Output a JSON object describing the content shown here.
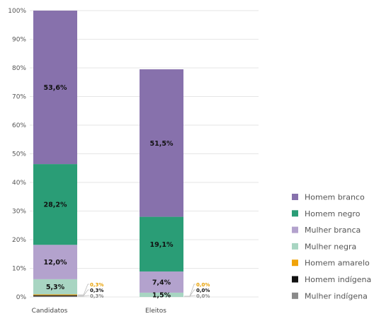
{
  "chart_data": {
    "type": "bar",
    "stacked": true,
    "categories": [
      "Candidatos",
      "Eleitos"
    ],
    "ylim": [
      0,
      100
    ],
    "yticks": [
      "0%",
      "10%",
      "20%",
      "30%",
      "40%",
      "50%",
      "60%",
      "70%",
      "80%",
      "90%",
      "100%"
    ],
    "grid": true,
    "legend_position": "right",
    "series": [
      {
        "name": "Mulher indígena",
        "color": "#8a8a8a",
        "values": [
          0.3,
          0.0
        ],
        "labels": [
          "0,3%",
          "0,0%"
        ]
      },
      {
        "name": "Homem indígena",
        "color": "#111111",
        "values": [
          0.3,
          0.0
        ],
        "labels": [
          "0,3%",
          "0,0%"
        ]
      },
      {
        "name": "Homem amarelo",
        "color": "#f0a30a",
        "values": [
          0.3,
          0.0
        ],
        "labels": [
          "0,3%",
          "0,0%"
        ]
      },
      {
        "name": "Mulher negra",
        "color": "#a8d5c2",
        "values": [
          5.3,
          1.5
        ],
        "labels": [
          "5,3%",
          "1,5%"
        ]
      },
      {
        "name": "Mulher branca",
        "color": "#b3a2cd",
        "values": [
          12.0,
          7.4
        ],
        "labels": [
          "12,0%",
          "7,4%"
        ]
      },
      {
        "name": "Homem negro",
        "color": "#2a9d76",
        "values": [
          28.2,
          19.1
        ],
        "labels": [
          "28,2%",
          "19,1%"
        ]
      },
      {
        "name": "Homem branco",
        "color": "#8771ac",
        "values": [
          53.6,
          51.5
        ],
        "labels": [
          "53,6%",
          "51,5%"
        ]
      }
    ],
    "legend_order": [
      "Homem branco",
      "Homem negro",
      "Mulher branca",
      "Mulher negra",
      "Homem amarelo",
      "Homem indígena",
      "Mulher indígena"
    ]
  }
}
